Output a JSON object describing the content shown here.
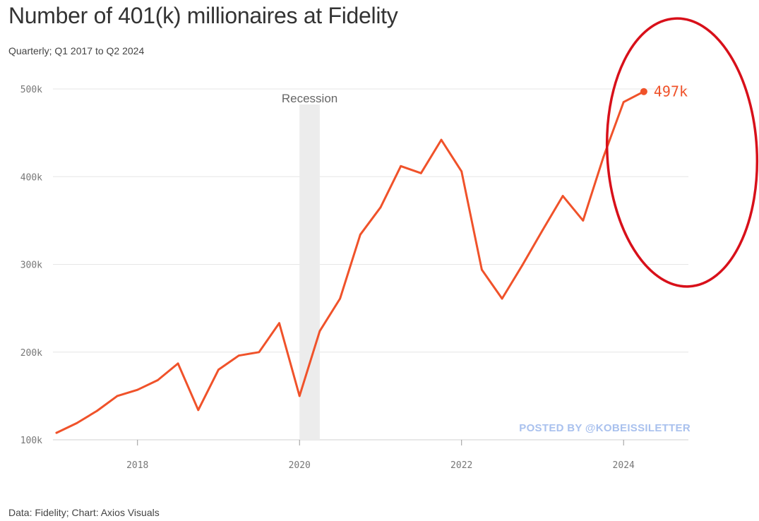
{
  "header": {
    "title": "Number of 401(k) millionaires at Fidelity",
    "subtitle": "Quarterly; Q1 2017 to Q2 2024"
  },
  "footer": {
    "source": "Data: Fidelity; Chart: Axios Visuals"
  },
  "watermark": "POSTED BY @KOBEISSILETTER",
  "colors": {
    "line": "#f0522a",
    "circle": "#d8101a",
    "recession": "#ececec",
    "grid": "#e6e6e6"
  },
  "chart_data": {
    "type": "line",
    "title": "Number of 401(k) millionaires at Fidelity",
    "subtitle": "Quarterly; Q1 2017 to Q2 2024",
    "xlabel": "",
    "ylabel": "",
    "xlim": [
      2017.0,
      2024.8
    ],
    "ylim": [
      100000,
      500000
    ],
    "y_ticks": [
      100000,
      200000,
      300000,
      400000,
      500000
    ],
    "y_tick_labels": [
      "100k",
      "200k",
      "300k",
      "400k",
      "500k"
    ],
    "x_ticks": [
      2018,
      2020,
      2022,
      2024
    ],
    "x_tick_labels": [
      "2018",
      "2020",
      "2022",
      "2024"
    ],
    "grid": true,
    "series": [
      {
        "name": "401(k) millionaires",
        "x": [
          2017.0,
          2017.25,
          2017.5,
          2017.75,
          2018.0,
          2018.25,
          2018.5,
          2018.75,
          2019.0,
          2019.25,
          2019.5,
          2019.75,
          2020.0,
          2020.25,
          2020.5,
          2020.75,
          2021.0,
          2021.25,
          2021.5,
          2021.75,
          2022.0,
          2022.25,
          2022.5,
          2022.75,
          2023.0,
          2023.25,
          2023.5,
          2023.75,
          2024.0,
          2024.25
        ],
        "values": [
          108000,
          119000,
          133000,
          150000,
          157000,
          168000,
          187000,
          134000,
          180000,
          196000,
          200000,
          233000,
          150000,
          224000,
          261000,
          334000,
          365000,
          412000,
          404000,
          442000,
          406000,
          294000,
          261000,
          299000,
          339000,
          378000,
          350000,
          422000,
          485000,
          497000
        ]
      }
    ],
    "annotations": [
      {
        "type": "shaded-region",
        "label": "Recession",
        "x_start": 2020.0,
        "x_end": 2020.25
      },
      {
        "type": "end-label",
        "label": "497k",
        "x": 2024.25,
        "value": 497000
      },
      {
        "type": "highlight-ellipse",
        "around": "2023.5 to 2024.25"
      }
    ]
  }
}
